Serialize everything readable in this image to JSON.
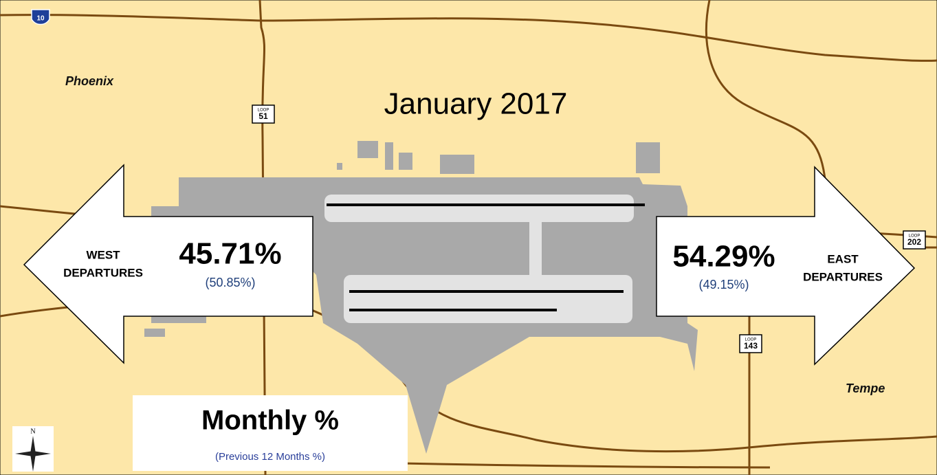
{
  "title": "January 2017",
  "places": [
    "Phoenix",
    "Tempe"
  ],
  "shields": [
    {
      "top": "",
      "number": "10"
    },
    {
      "top": "LOOP",
      "number": "51"
    },
    {
      "top": "LOOP",
      "number": "143"
    },
    {
      "top": "LOOP",
      "number": "202"
    }
  ],
  "west": {
    "label_line1": "WEST",
    "label_line2": "DEPARTURES",
    "monthly": "45.71%",
    "previous": "(50.85%)"
  },
  "east": {
    "label_line1": "EAST",
    "label_line2": "DEPARTURES",
    "monthly": "54.29%",
    "previous": "(49.15%)"
  },
  "legend": {
    "title": "Monthly %",
    "subtitle": "(Previous 12 Months %)"
  },
  "compass": "N"
}
